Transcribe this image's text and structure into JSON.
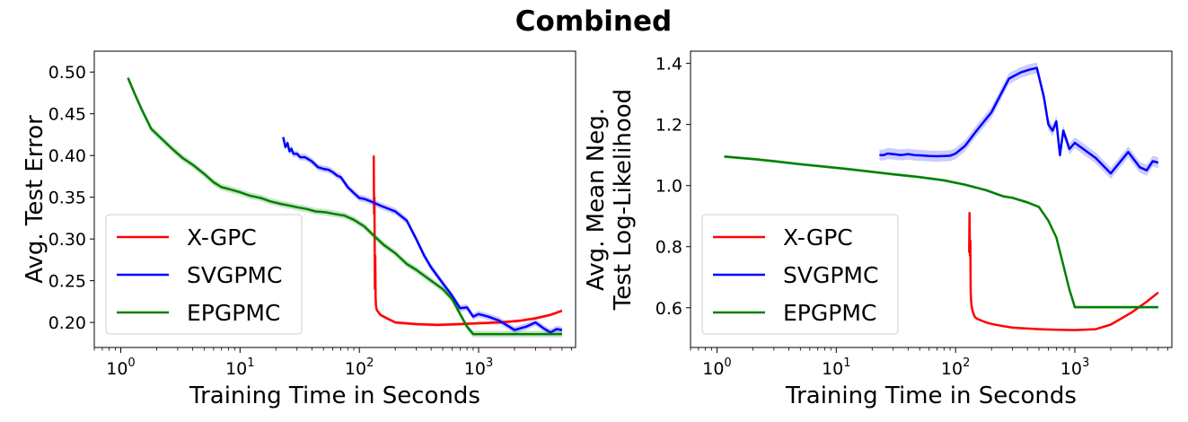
{
  "figure": {
    "suptitle": "Combined"
  },
  "chart_data": [
    {
      "type": "line",
      "title": "",
      "xlabel": "Training Time in Seconds",
      "ylabel": "Avg. Test Error",
      "xscale": "log",
      "xlim": [
        0.6,
        6500
      ],
      "ylim": [
        0.17,
        0.525
      ],
      "xticks": [
        1,
        10,
        100,
        1000
      ],
      "xtick_labels": [
        {
          "base": "10",
          "exp": "0"
        },
        {
          "base": "10",
          "exp": "1"
        },
        {
          "base": "10",
          "exp": "2"
        },
        {
          "base": "10",
          "exp": "3"
        }
      ],
      "yticks": [
        0.2,
        0.25,
        0.3,
        0.35,
        0.4,
        0.45,
        0.5
      ],
      "ytick_labels": [
        "0.20",
        "0.25",
        "0.30",
        "0.35",
        "0.40",
        "0.45",
        "0.50"
      ],
      "grid": false,
      "legend": "lower-left",
      "series": [
        {
          "name": "X-GPC",
          "color": "#ff0000",
          "band": 0.002,
          "x": [
            132,
            133,
            134,
            135,
            136,
            137,
            138,
            140,
            145,
            150,
            170,
            200,
            300,
            450,
            700,
            1000,
            1500,
            2200,
            3000,
            4000,
            5000
          ],
          "y": [
            0.4,
            0.33,
            0.35,
            0.24,
            0.28,
            0.23,
            0.22,
            0.215,
            0.212,
            0.209,
            0.205,
            0.2,
            0.198,
            0.197,
            0.198,
            0.199,
            0.2,
            0.202,
            0.205,
            0.209,
            0.214
          ]
        },
        {
          "name": "SVGPMC",
          "color": "#0000ff",
          "band": 0.004,
          "x": [
            23,
            24,
            25,
            26,
            27,
            28,
            30,
            32,
            35,
            40,
            45,
            50,
            55,
            60,
            65,
            70,
            80,
            90,
            100,
            110,
            120,
            130,
            150,
            200,
            250,
            300,
            350,
            400,
            500,
            600,
            700,
            800,
            900,
            1000,
            1200,
            1500,
            2000,
            2500,
            3000,
            3500,
            4000,
            4500,
            5000
          ],
          "y": [
            0.422,
            0.41,
            0.415,
            0.405,
            0.408,
            0.402,
            0.402,
            0.398,
            0.398,
            0.393,
            0.386,
            0.384,
            0.383,
            0.38,
            0.376,
            0.374,
            0.362,
            0.355,
            0.349,
            0.348,
            0.346,
            0.344,
            0.34,
            0.333,
            0.322,
            0.3,
            0.28,
            0.266,
            0.247,
            0.232,
            0.217,
            0.218,
            0.207,
            0.21,
            0.207,
            0.202,
            0.191,
            0.195,
            0.2,
            0.193,
            0.188,
            0.192,
            0.191
          ]
        },
        {
          "name": "EPGPMC",
          "color": "#008000",
          "band": 0.004,
          "x": [
            1.15,
            1.3,
            1.5,
            1.8,
            2.2,
            2.7,
            3.3,
            4,
            5,
            6,
            7,
            8,
            10,
            12,
            15,
            18,
            22,
            26,
            30,
            36,
            43,
            52,
            62,
            75,
            90,
            110,
            130,
            160,
            200,
            250,
            300,
            400,
            500,
            600,
            700,
            800,
            900,
            1000,
            1500,
            2000,
            3000,
            4000,
            5000
          ],
          "y": [
            0.493,
            0.475,
            0.455,
            0.432,
            0.42,
            0.408,
            0.397,
            0.389,
            0.378,
            0.368,
            0.362,
            0.36,
            0.356,
            0.352,
            0.349,
            0.345,
            0.342,
            0.34,
            0.338,
            0.336,
            0.333,
            0.332,
            0.33,
            0.328,
            0.323,
            0.315,
            0.305,
            0.293,
            0.283,
            0.27,
            0.263,
            0.25,
            0.24,
            0.228,
            0.21,
            0.195,
            0.186,
            0.186,
            0.186,
            0.186,
            0.186,
            0.186,
            0.186
          ]
        }
      ]
    },
    {
      "type": "line",
      "title": "",
      "xlabel": "Training Time in Seconds",
      "ylabel": "Avg. Mean Neg.\nTest Log-Likelihood",
      "xscale": "log",
      "xlim": [
        0.6,
        6500
      ],
      "ylim": [
        0.47,
        1.44
      ],
      "xticks": [
        1,
        10,
        100,
        1000
      ],
      "xtick_labels": [
        {
          "base": "10",
          "exp": "0"
        },
        {
          "base": "10",
          "exp": "1"
        },
        {
          "base": "10",
          "exp": "2"
        },
        {
          "base": "10",
          "exp": "3"
        }
      ],
      "yticks": [
        0.6,
        0.8,
        1.0,
        1.2,
        1.4
      ],
      "ytick_labels": [
        "0.6",
        "0.8",
        "1.0",
        "1.2",
        "1.4"
      ],
      "grid": false,
      "legend": "lower-left",
      "series": [
        {
          "name": "X-GPC",
          "color": "#ff0000",
          "band": 0.003,
          "x": [
            130,
            131,
            132,
            133,
            134,
            135,
            137,
            140,
            145,
            150,
            160,
            180,
            200,
            250,
            300,
            400,
            500,
            700,
            1000,
            1500,
            2000,
            3000,
            4000,
            5000
          ],
          "y": [
            0.78,
            0.91,
            0.77,
            0.82,
            0.65,
            0.62,
            0.6,
            0.585,
            0.57,
            0.565,
            0.56,
            0.552,
            0.547,
            0.54,
            0.535,
            0.532,
            0.53,
            0.528,
            0.527,
            0.53,
            0.545,
            0.585,
            0.62,
            0.65
          ]
        },
        {
          "name": "SVGPMC",
          "color": "#0000ff",
          "band": 0.018,
          "x": [
            23,
            25,
            27,
            30,
            35,
            40,
            45,
            50,
            55,
            60,
            70,
            80,
            90,
            100,
            120,
            150,
            200,
            280,
            350,
            420,
            480,
            550,
            600,
            650,
            700,
            750,
            800,
            900,
            1000,
            1500,
            2000,
            2800,
            3500,
            4000,
            4500,
            5000
          ],
          "y": [
            1.1,
            1.1,
            1.105,
            1.103,
            1.1,
            1.103,
            1.1,
            1.099,
            1.098,
            1.097,
            1.096,
            1.097,
            1.098,
            1.105,
            1.13,
            1.18,
            1.24,
            1.35,
            1.37,
            1.38,
            1.385,
            1.29,
            1.2,
            1.18,
            1.21,
            1.1,
            1.18,
            1.12,
            1.14,
            1.09,
            1.04,
            1.11,
            1.06,
            1.05,
            1.08,
            1.075
          ]
        },
        {
          "name": "EPGPMC",
          "color": "#008000",
          "band": 0.005,
          "x": [
            1.15,
            2,
            3,
            5,
            8,
            12,
            20,
            30,
            50,
            80,
            120,
            180,
            250,
            300,
            400,
            500,
            600,
            700,
            800,
            900,
            1000,
            1500,
            2000,
            3000,
            4000,
            5000
          ],
          "y": [
            1.095,
            1.087,
            1.08,
            1.07,
            1.062,
            1.055,
            1.045,
            1.037,
            1.028,
            1.017,
            1.003,
            0.985,
            0.965,
            0.96,
            0.945,
            0.93,
            0.885,
            0.83,
            0.74,
            0.66,
            0.602,
            0.602,
            0.602,
            0.602,
            0.602,
            0.602
          ]
        }
      ]
    }
  ]
}
